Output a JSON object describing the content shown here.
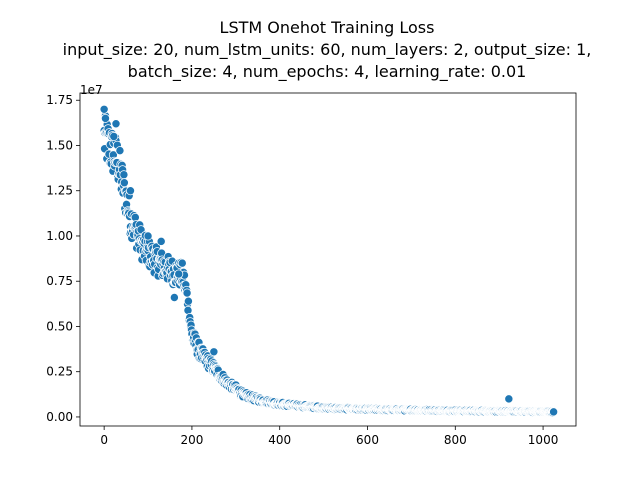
{
  "chart_data": {
    "type": "scatter",
    "title_lines": [
      "LSTM Onehot Training Loss",
      "input_size: 20, num_lstm_units: 60, num_layers: 2, output_size: 1,",
      "batch_size: 4, num_epochs: 4, learning_rate: 0.01"
    ],
    "xlabel": "",
    "ylabel": "",
    "y_offset_label": "1e7",
    "xlim": [
      -55,
      1075
    ],
    "ylim": [
      -500000,
      17900000
    ],
    "x_ticks": [
      0,
      200,
      400,
      600,
      800,
      1000
    ],
    "x_tick_labels": [
      "0",
      "200",
      "400",
      "600",
      "800",
      "1000"
    ],
    "y_ticks": [
      0,
      2500000,
      5000000,
      7500000,
      10000000,
      12500000,
      15000000,
      17500000
    ],
    "y_tick_labels": [
      "0.00",
      "0.25",
      "0.50",
      "0.75",
      "1.00",
      "1.25",
      "1.50",
      "1.75"
    ],
    "grid": false,
    "marker_color": "#1f77b4",
    "curve_anchors": [
      [
        0,
        15400000
      ],
      [
        30,
        14200000
      ],
      [
        60,
        11000000
      ],
      [
        90,
        9300000
      ],
      [
        120,
        8600000
      ],
      [
        150,
        8100000
      ],
      [
        180,
        7800000
      ],
      [
        190,
        6500000
      ],
      [
        200,
        4500000
      ],
      [
        220,
        3500000
      ],
      [
        250,
        2700000
      ],
      [
        280,
        1900000
      ],
      [
        320,
        1200000
      ],
      [
        360,
        900000
      ],
      [
        400,
        720000
      ],
      [
        500,
        500000
      ],
      [
        600,
        420000
      ],
      [
        700,
        380000
      ],
      [
        800,
        340000
      ],
      [
        900,
        310000
      ],
      [
        1024,
        280000
      ]
    ],
    "highlighted_points": [
      [
        0,
        17000000
      ],
      [
        3,
        16500000
      ],
      [
        27,
        16200000
      ],
      [
        22,
        15500000
      ],
      [
        60,
        12500000
      ],
      [
        100,
        10000000
      ],
      [
        130,
        9700000
      ],
      [
        170,
        7900000
      ],
      [
        178,
        8500000
      ],
      [
        160,
        6600000
      ],
      [
        250,
        3600000
      ],
      [
        922,
        1000000
      ],
      [
        1024,
        280000
      ]
    ]
  }
}
